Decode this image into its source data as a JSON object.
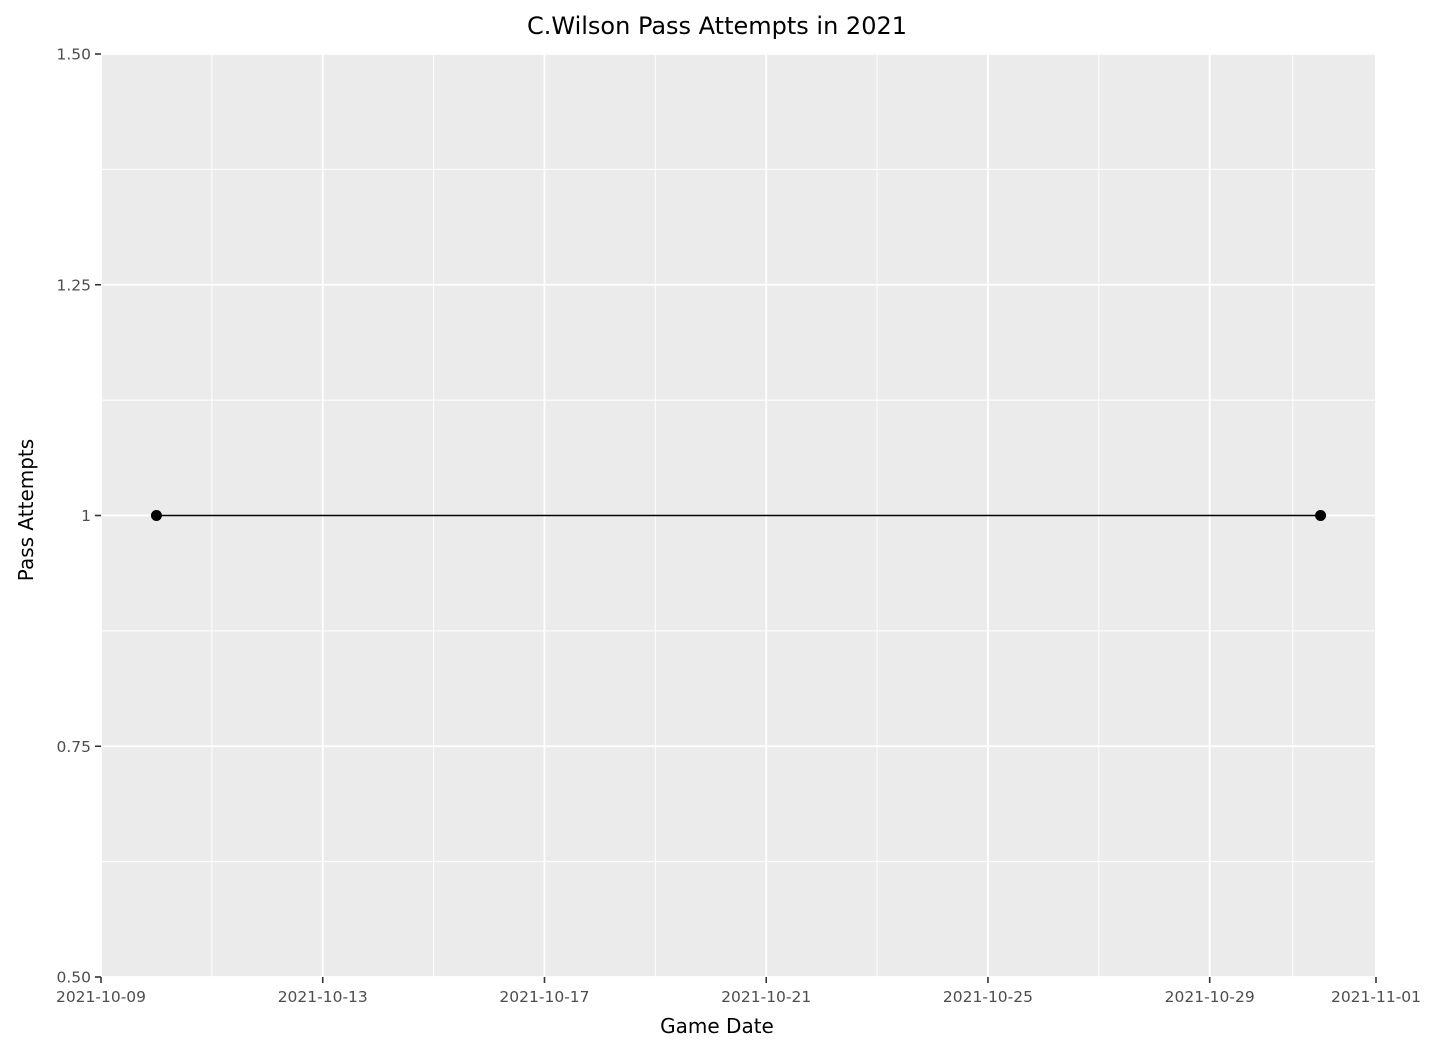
{
  "chart_data": {
    "type": "line",
    "title": "C.Wilson Pass Attempts in 2021",
    "xlabel": "Game Date",
    "ylabel": "Pass Attempts",
    "x_type": "date",
    "xlim": [
      "2021-10-09",
      "2021-11-01"
    ],
    "ylim": [
      0.5,
      1.5
    ],
    "x_ticks": [
      "2021-10-09",
      "2021-10-13",
      "2021-10-17",
      "2021-10-21",
      "2021-10-25",
      "2021-10-29",
      "2021-11-01"
    ],
    "y_ticks": [
      {
        "value": 0.5,
        "label": "0.50"
      },
      {
        "value": 0.75,
        "label": "0.75"
      },
      {
        "value": 1.0,
        "label": "1"
      },
      {
        "value": 1.25,
        "label": "1.25"
      },
      {
        "value": 1.5,
        "label": "1.50"
      }
    ],
    "grid": true,
    "legend": "none",
    "series": [
      {
        "color": "#000000",
        "points": [
          {
            "x": "2021-10-10",
            "y": 1
          },
          {
            "x": "2021-10-31",
            "y": 1
          }
        ]
      }
    ]
  }
}
